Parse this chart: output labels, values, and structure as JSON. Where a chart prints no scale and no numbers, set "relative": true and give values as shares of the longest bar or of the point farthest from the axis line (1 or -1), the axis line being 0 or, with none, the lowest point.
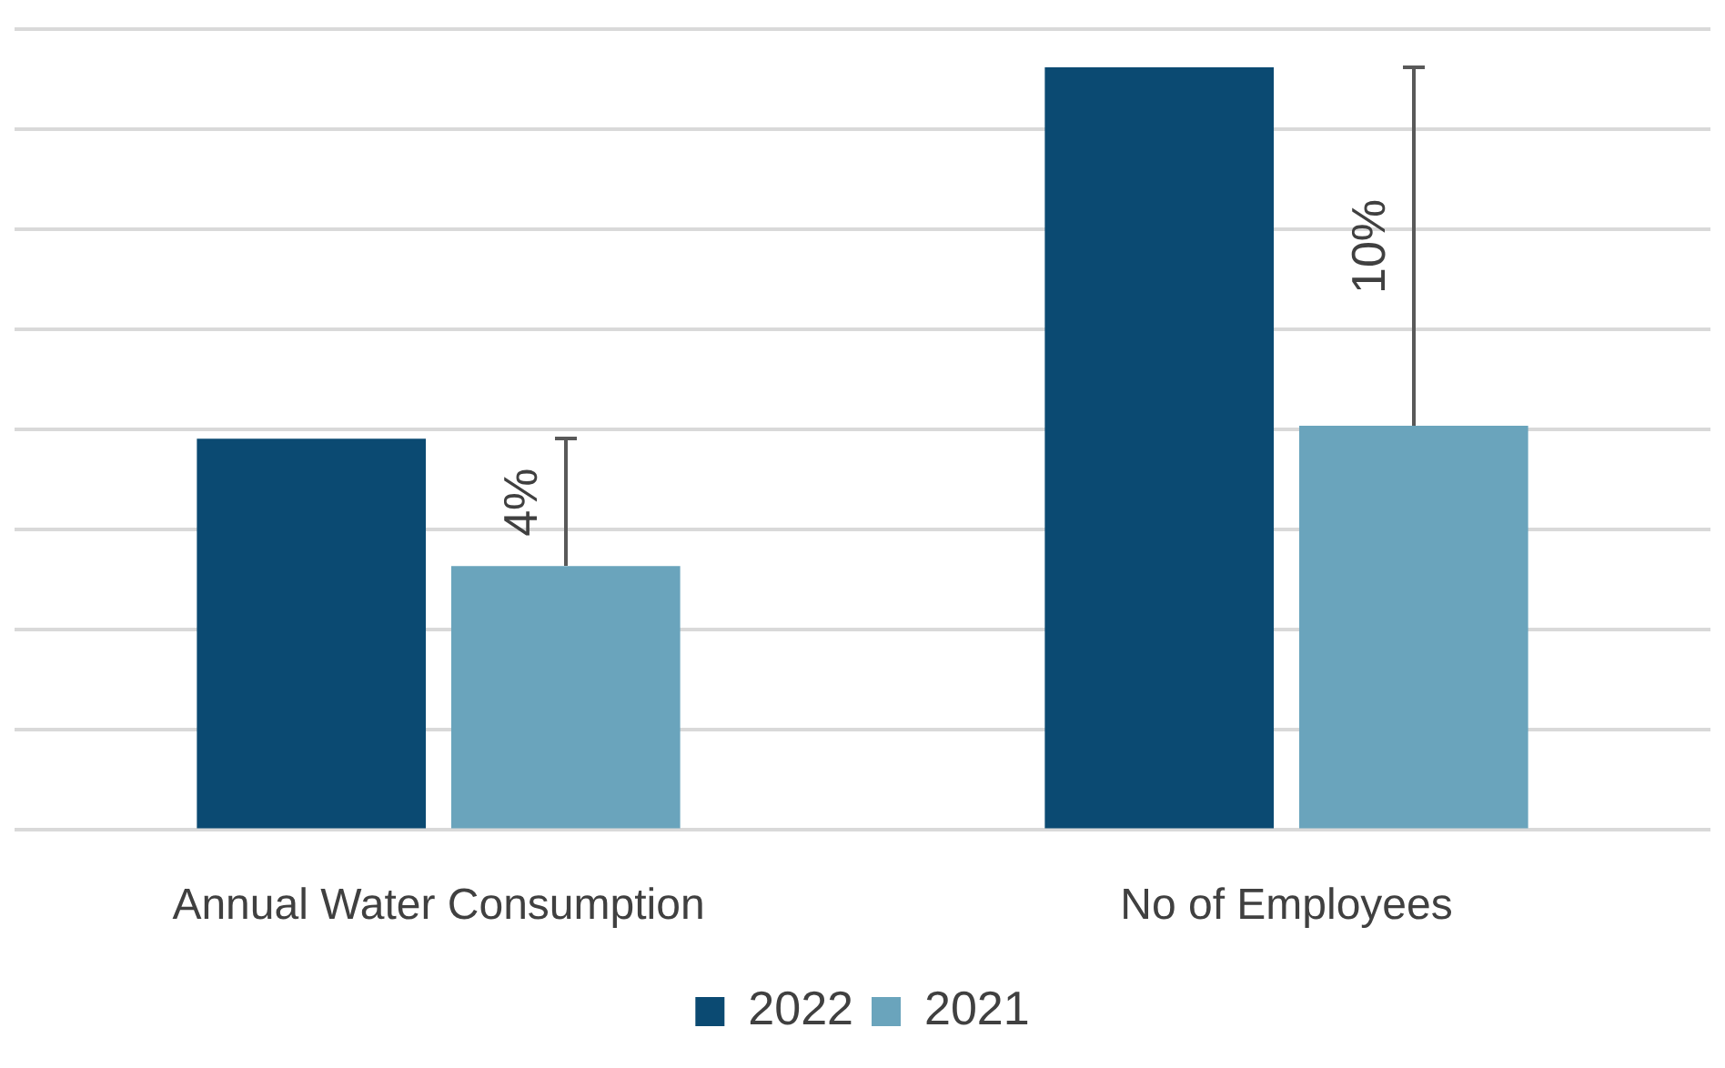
{
  "chart_data": {
    "type": "bar",
    "relative": true,
    "categories": [
      "Annual Water Consumption",
      "No of Employees"
    ],
    "series": [
      {
        "name": "2022",
        "color": "#0b4a72",
        "values": [
          0.513,
          1
        ]
      },
      {
        "name": "2021",
        "color": "#6aa4bc",
        "values": [
          0.346,
          0.53
        ]
      }
    ],
    "annotations": [
      "4%",
      "10%"
    ],
    "grid": "y",
    "legend": "bottom"
  }
}
